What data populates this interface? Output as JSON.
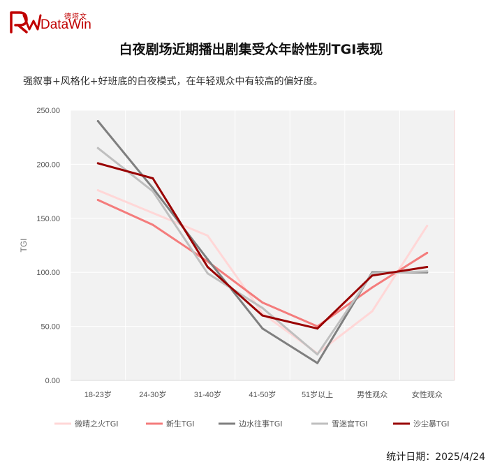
{
  "logo": {
    "cn_text": "德塔文",
    "en_text": "DataWin",
    "color": "#c00000"
  },
  "title": "白夜剧场近期播出剧集受众年龄性别TGI表现",
  "subtitle": "强叙事+风格化+好班底的白夜模式，在年轻观众中有较高的偏好度。",
  "footer": "统计日期：2025/4/24",
  "chart_data": {
    "type": "line",
    "categories": [
      "18-23岁",
      "24-30岁",
      "31-40岁",
      "41-50岁",
      "51岁以上",
      "男性观众",
      "女性观众"
    ],
    "ylabel": "TGI",
    "ylim": [
      0,
      250
    ],
    "yticks": [
      "0.00",
      "50.00",
      "100.00",
      "150.00",
      "200.00",
      "250.00"
    ],
    "grid": true,
    "legend_position": "bottom",
    "plot_background": "#f2f2f2",
    "series": [
      {
        "name": "微晴之火TGI",
        "color": "#ffd7d7",
        "values": [
          176,
          155,
          134,
          62,
          25,
          64,
          143
        ]
      },
      {
        "name": "新生TGI",
        "color": "#f47c7c",
        "values": [
          167,
          144,
          110,
          72,
          50,
          86,
          118
        ]
      },
      {
        "name": "边水往事TGI",
        "color": "#7f7f7f",
        "values": [
          240,
          178,
          112,
          48,
          16,
          100,
          100
        ]
      },
      {
        "name": "雪迷宫TGI",
        "color": "#bfbfbf",
        "values": [
          215,
          175,
          99,
          67,
          24,
          99,
          101
        ]
      },
      {
        "name": "沙尘暴TGI",
        "color": "#990000",
        "values": [
          201,
          187,
          105,
          60,
          48,
          97,
          105
        ]
      }
    ]
  }
}
